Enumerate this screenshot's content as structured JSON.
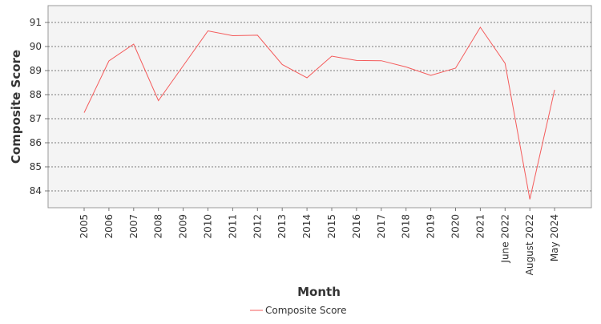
{
  "chart_data": {
    "type": "line",
    "xlabel": "Month",
    "ylabel": "Composite Score",
    "categories": [
      "2005",
      "2006",
      "2007",
      "2008",
      "2009",
      "2010",
      "2011",
      "2012",
      "2013",
      "2014",
      "2015",
      "2016",
      "2017",
      "2018",
      "2019",
      "2020",
      "2021",
      "June 2022",
      "August 2022",
      "May 2024"
    ],
    "series": [
      {
        "name": "Composite Score",
        "color": "#f45b5b",
        "values": [
          87.25,
          89.4,
          90.1,
          87.75,
          89.2,
          90.65,
          90.45,
          90.47,
          89.25,
          88.7,
          89.6,
          89.42,
          89.41,
          89.15,
          88.8,
          89.1,
          90.8,
          89.3,
          83.65,
          88.2
        ]
      }
    ],
    "yticks": [
      84,
      85,
      86,
      87,
      88,
      89,
      90,
      91
    ],
    "ylim": [
      83.3,
      91.7
    ],
    "grid": true,
    "legend_position": "bottom-center",
    "plot_background": "#f4f4f4"
  }
}
